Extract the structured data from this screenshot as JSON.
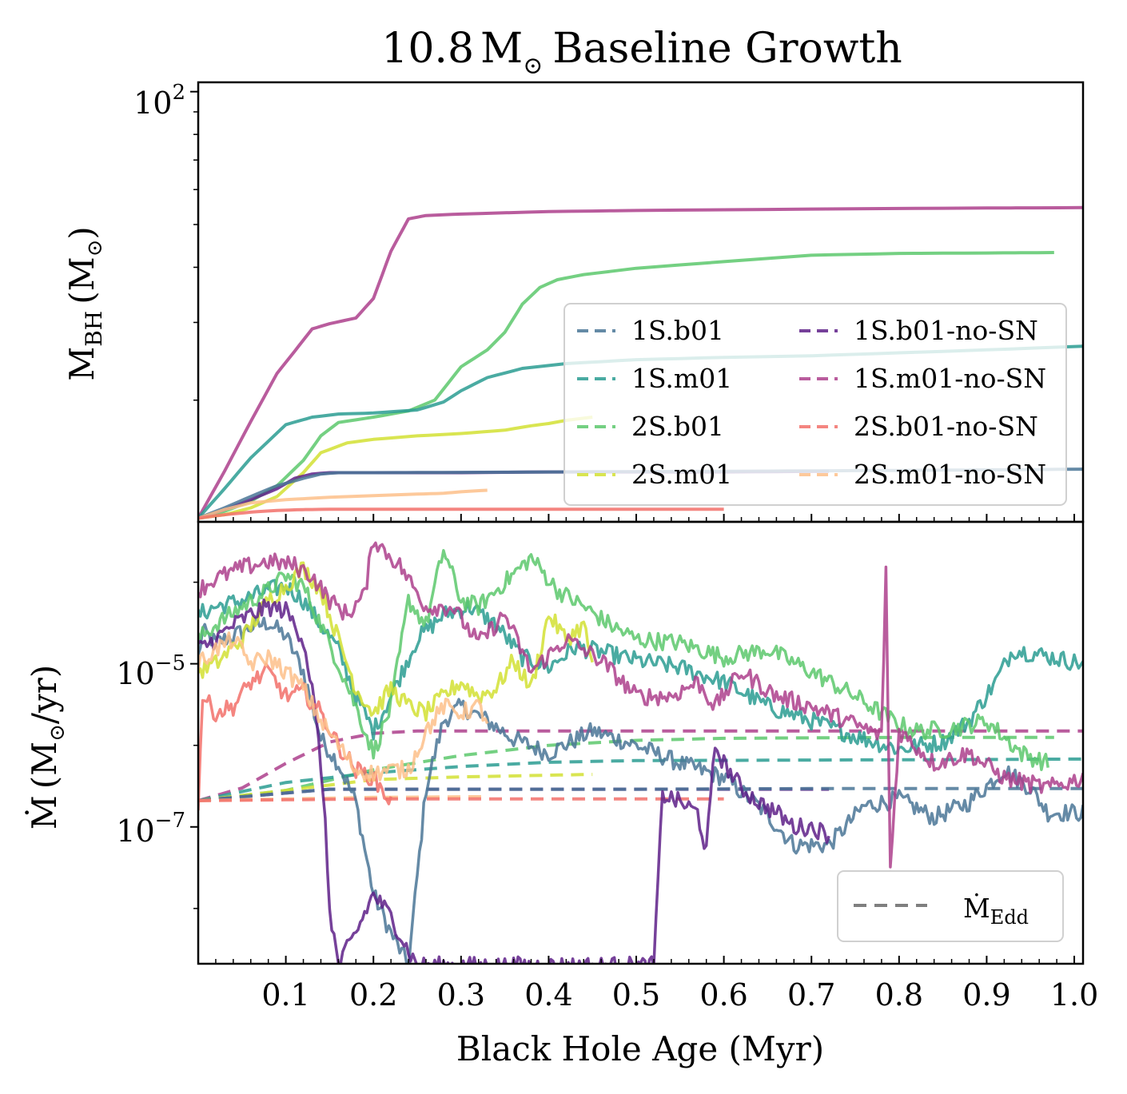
{
  "chart_data": {
    "type": "line",
    "title": "10.8 M⊙ Baseline Growth",
    "title_main": "10.8",
    "title_msun": "M",
    "title_sub": "⊙",
    "title_rest": "Baseline Growth",
    "xlabel": "Black Hole Age (Myr)",
    "xlim": [
      0.0,
      1.01
    ],
    "xticks": [
      0.1,
      0.2,
      0.3,
      0.4,
      0.5,
      0.6,
      0.7,
      0.8,
      0.9,
      1.0
    ],
    "xtick_labels": [
      "0.1",
      "0.2",
      "0.3",
      "0.4",
      "0.5",
      "0.6",
      "0.7",
      "0.8",
      "0.9",
      "1.0"
    ],
    "colors": {
      "1S.b01": "#4a7696",
      "1S.m01": "#2a9c92",
      "2S.b01": "#5cc86c",
      "2S.m01": "#d2e132",
      "1S.b01-no-SN": "#5e2088",
      "1S.m01-no-SN": "#ad3f8c",
      "2S.b01-no-SN": "#f2706a",
      "2S.m01-no-SN": "#fdbf8a",
      "edd_legend": "#7f7f7f"
    },
    "legend_top": {
      "location": "center-right",
      "entries": [
        "1S.b01",
        "1S.m01",
        "2S.b01",
        "2S.m01",
        "1S.b01-no-SN",
        "1S.m01-no-SN",
        "2S.b01-no-SN",
        "2S.m01-no-SN"
      ]
    },
    "legend_bottom": {
      "location": "lower-right",
      "label_main": "Ṁ",
      "label_sub": "Edd",
      "style": "dashed"
    },
    "top_panel": {
      "ylabel_main": "M",
      "ylabel_sub": "BH",
      "ylabel_unit": "(M",
      "ylabel_unit_sub": "⊙",
      "ylabel_close": ")",
      "yscale": "log",
      "ylim": [
        10.6,
        105
      ],
      "ytick_label_base": "10",
      "ytick_label_exp": "2",
      "ytick_value": 100,
      "series": [
        {
          "name": "1S.m01-no-SN",
          "x": [
            0.0,
            0.03,
            0.06,
            0.09,
            0.11,
            0.13,
            0.15,
            0.18,
            0.2,
            0.22,
            0.24,
            0.26,
            0.3,
            0.4,
            0.5,
            0.7,
            0.9,
            1.01
          ],
          "y": [
            10.8,
            13.8,
            17.9,
            23.0,
            25.8,
            29.0,
            29.8,
            30.7,
            34.0,
            43.5,
            51.5,
            52.4,
            52.8,
            53.5,
            53.8,
            54.2,
            54.5,
            54.6
          ]
        },
        {
          "name": "2S.b01",
          "x": [
            0.0,
            0.03,
            0.06,
            0.09,
            0.12,
            0.14,
            0.16,
            0.2,
            0.24,
            0.27,
            0.3,
            0.33,
            0.35,
            0.37,
            0.39,
            0.41,
            0.44,
            0.5,
            0.6,
            0.7,
            0.8,
            0.9,
            0.977
          ],
          "y": [
            10.8,
            11.2,
            11.8,
            12.8,
            14.6,
            16.6,
            17.8,
            18.3,
            18.9,
            20.0,
            23.8,
            26.0,
            28.5,
            33.0,
            36.0,
            37.5,
            38.5,
            39.8,
            41.2,
            42.6,
            43.0,
            43.1,
            43.2
          ]
        },
        {
          "name": "1S.m01",
          "x": [
            0.0,
            0.03,
            0.06,
            0.1,
            0.13,
            0.16,
            0.2,
            0.25,
            0.28,
            0.3,
            0.33,
            0.37,
            0.42,
            0.5,
            0.6,
            0.7,
            0.8,
            0.9,
            1.01
          ],
          "y": [
            10.8,
            12.6,
            14.8,
            17.6,
            18.3,
            18.6,
            18.7,
            19.0,
            19.8,
            21.0,
            22.5,
            23.6,
            24.2,
            24.7,
            25.0,
            25.2,
            25.6,
            26.0,
            26.5
          ]
        },
        {
          "name": "2S.m01",
          "x": [
            0.0,
            0.03,
            0.06,
            0.09,
            0.12,
            0.14,
            0.17,
            0.2,
            0.25,
            0.3,
            0.35,
            0.38,
            0.4,
            0.42,
            0.45
          ],
          "y": [
            10.8,
            11.0,
            11.4,
            12.1,
            13.7,
            15.2,
            16.0,
            16.3,
            16.6,
            16.8,
            17.1,
            17.5,
            17.7,
            18.0,
            18.3
          ]
        },
        {
          "name": "1S.b01-no-SN",
          "x": [
            0.0,
            0.03,
            0.06,
            0.09,
            0.11,
            0.13,
            0.15,
            0.2,
            0.3,
            0.4,
            0.5,
            0.6,
            0.72
          ],
          "y": [
            10.8,
            11.3,
            11.9,
            12.6,
            13.3,
            13.6,
            13.7,
            13.7,
            13.7,
            13.75,
            13.75,
            13.75,
            13.8
          ]
        },
        {
          "name": "1S.b01",
          "x": [
            0.0,
            0.03,
            0.06,
            0.09,
            0.12,
            0.14,
            0.16,
            0.2,
            0.3,
            0.4,
            0.5,
            0.6,
            0.7,
            0.8,
            0.9,
            1.01
          ],
          "y": [
            10.8,
            11.4,
            12.1,
            12.8,
            13.3,
            13.6,
            13.7,
            13.7,
            13.72,
            13.75,
            13.78,
            13.8,
            13.83,
            13.86,
            13.9,
            13.95
          ]
        },
        {
          "name": "2S.m01-no-SN",
          "x": [
            0.0,
            0.03,
            0.06,
            0.1,
            0.15,
            0.2,
            0.25,
            0.28,
            0.3,
            0.33
          ],
          "y": [
            10.8,
            11.3,
            11.7,
            11.9,
            12.05,
            12.15,
            12.25,
            12.3,
            12.4,
            12.5
          ]
        },
        {
          "name": "2S.b01-no-SN",
          "x": [
            0.0,
            0.03,
            0.06,
            0.09,
            0.12,
            0.16,
            0.2,
            0.3,
            0.4,
            0.5,
            0.6
          ],
          "y": [
            10.8,
            11.0,
            11.15,
            11.25,
            11.3,
            11.32,
            11.32,
            11.32,
            11.32,
            11.32,
            11.32
          ]
        }
      ]
    },
    "bottom_panel": {
      "ylabel_main": "Ṁ",
      "ylabel_unit": "(M",
      "ylabel_unit_sub": "⊙",
      "ylabel_close": "/yr)",
      "yscale": "log",
      "ylim": [
        2.1e-09,
        0.00055
      ],
      "yticks": [
        1e-05,
        1e-07
      ],
      "ytick_label_base": [
        "10",
        "10"
      ],
      "ytick_label_exp": [
        "−5",
        "−7"
      ],
      "series": [
        {
          "name": "1S.b01",
          "x": [
            0.0,
            0.005,
            0.02,
            0.04,
            0.06,
            0.08,
            0.1,
            0.12,
            0.14,
            0.16,
            0.18,
            0.2,
            0.22,
            0.24,
            0.26,
            0.28,
            0.3,
            0.33,
            0.36,
            0.4,
            0.45,
            0.5,
            0.55,
            0.6,
            0.64,
            0.68,
            0.72,
            0.76,
            0.8,
            0.84,
            0.88,
            0.92,
            0.95,
            0.97,
            1.01
          ],
          "y": [
            1.2e-05,
            2.5e-05,
            1.8e-05,
            2.2e-05,
            2.8e-05,
            3.2e-05,
            2.2e-05,
            8e-06,
            1.2e-06,
            6e-07,
            2e-07,
            1.5e-08,
            5e-09,
            2e-09,
            3e-07,
            2e-06,
            3e-06,
            2e-06,
            1.2e-06,
            8e-07,
            1.5e-06,
            1e-06,
            6e-07,
            4e-07,
            1.8e-07,
            6e-08,
            6e-08,
            1.8e-07,
            2.2e-07,
            1.3e-07,
            2e-07,
            5e-07,
            3e-07,
            1.5e-07,
            1.5e-07
          ]
        },
        {
          "name": "1S.m01",
          "x": [
            0.0,
            0.02,
            0.05,
            0.08,
            0.1,
            0.12,
            0.14,
            0.16,
            0.18,
            0.2,
            0.22,
            0.25,
            0.28,
            0.31,
            0.34,
            0.37,
            0.4,
            0.43,
            0.46,
            0.5,
            0.55,
            0.6,
            0.65,
            0.7,
            0.75,
            0.8,
            0.85,
            0.88,
            0.91,
            0.93,
            0.96,
            1.01
          ],
          "y": [
            4e-05,
            5e-05,
            6e-05,
            8e-05,
            9e-05,
            6e-05,
            3e-05,
            1.5e-05,
            4e-06,
            1.5e-06,
            4e-06,
            2e-05,
            4e-05,
            5e-05,
            3e-05,
            1.2e-05,
            9e-06,
            1.6e-05,
            1.4e-05,
            1.1e-05,
            9e-06,
            6e-06,
            3e-06,
            2e-06,
            1.3e-06,
            9e-07,
            1.1e-06,
            2e-06,
            6e-06,
            1.5e-05,
            1.3e-05,
            1e-05
          ]
        },
        {
          "name": "2S.b01",
          "x": [
            0.0,
            0.02,
            0.05,
            0.08,
            0.1,
            0.12,
            0.14,
            0.16,
            0.18,
            0.2,
            0.22,
            0.24,
            0.26,
            0.28,
            0.3,
            0.32,
            0.35,
            0.38,
            0.41,
            0.44,
            0.47,
            0.5,
            0.55,
            0.6,
            0.65,
            0.7,
            0.75,
            0.8,
            0.82,
            0.86,
            0.9,
            0.94,
            0.97
          ],
          "y": [
            2e-05,
            3e-05,
            5e-05,
            8e-05,
            0.00012,
            9e-05,
            3e-05,
            1e-05,
            3e-06,
            8e-07,
            3e-06,
            6e-05,
            3e-05,
            0.00025,
            6e-05,
            5e-05,
            0.0001,
            0.0002,
            8e-05,
            5e-05,
            3e-05,
            2e-05,
            1.8e-05,
            1.2e-05,
            1.5e-05,
            8e-06,
            4e-06,
            1.8e-06,
            1.5e-06,
            1.6e-06,
            2e-06,
            8e-07,
            6e-07
          ]
        },
        {
          "name": "2S.m01",
          "x": [
            0.0,
            0.02,
            0.05,
            0.08,
            0.1,
            0.12,
            0.14,
            0.16,
            0.18,
            0.2,
            0.22,
            0.24,
            0.26,
            0.28,
            0.3,
            0.32,
            0.34,
            0.36,
            0.38,
            0.4,
            0.42,
            0.44,
            0.45
          ],
          "y": [
            8e-06,
            1e-05,
            2e-05,
            6e-05,
            9e-05,
            0.00015,
            8e-05,
            2e-05,
            5e-06,
            2.5e-06,
            5e-06,
            3e-06,
            2.5e-06,
            4e-06,
            6e-06,
            4e-06,
            5e-06,
            1.1e-05,
            5e-06,
            4e-05,
            2e-05,
            3e-05,
            1e-05
          ]
        },
        {
          "name": "1S.b01-no-SN",
          "x": [
            0.0,
            0.02,
            0.04,
            0.06,
            0.08,
            0.1,
            0.12,
            0.13,
            0.14,
            0.145,
            0.15,
            0.16,
            0.18,
            0.2,
            0.22,
            0.24,
            0.25,
            0.52,
            0.53,
            0.55,
            0.57,
            0.58,
            0.59,
            0.6,
            0.62,
            0.64,
            0.66,
            0.68,
            0.7,
            0.72
          ],
          "y": [
            1.5e-05,
            2e-05,
            3e-05,
            4e-05,
            5e-05,
            4.5e-05,
            2e-05,
            5e-06,
            6e-07,
            1e-07,
            1e-08,
            2e-09,
            5e-09,
            1.5e-08,
            8e-09,
            3e-09,
            2e-09,
            2e-09,
            2.5e-07,
            2e-07,
            1.5e-07,
            5e-08,
            1e-06,
            6e-07,
            3e-07,
            2e-07,
            1.5e-07,
            1e-07,
            1e-07,
            8e-08
          ]
        },
        {
          "name": "1S.m01-no-SN",
          "x": [
            0.0,
            0.02,
            0.05,
            0.08,
            0.11,
            0.13,
            0.15,
            0.17,
            0.19,
            0.2,
            0.21,
            0.23,
            0.26,
            0.29,
            0.32,
            0.35,
            0.38,
            0.42,
            0.46,
            0.5,
            0.54,
            0.57,
            0.59,
            0.62,
            0.66,
            0.7,
            0.74,
            0.78,
            0.785,
            0.79,
            0.8,
            0.84,
            0.88,
            0.92,
            0.97,
            1.01
          ],
          "y": [
            8e-05,
            0.00011,
            0.00015,
            0.00018,
            0.00016,
            0.00012,
            6e-05,
            4e-05,
            7e-05,
            0.00035,
            0.00026,
            0.00016,
            5e-05,
            5e-05,
            1.8e-05,
            4e-05,
            8e-06,
            2e-05,
            1.1e-05,
            4e-06,
            4e-06,
            6e-06,
            3e-06,
            8e-06,
            4e-06,
            3e-06,
            2e-06,
            1.3e-06,
            0.00015,
            3e-08,
            1.5e-06,
            6e-07,
            8e-07,
            4e-07,
            3e-07,
            4e-07
          ]
        },
        {
          "name": "2S.b01-no-SN",
          "x": [
            0.0,
            0.005,
            0.02,
            0.04,
            0.06,
            0.08,
            0.1,
            0.12,
            0.14,
            0.16,
            0.18,
            0.2,
            0.22
          ],
          "y": [
            2e-07,
            4e-06,
            2.5e-06,
            3e-06,
            6e-06,
            8e-06,
            4e-06,
            4.5e-06,
            2.5e-06,
            1e-06,
            5e-07,
            4e-07,
            2e-07
          ]
        },
        {
          "name": "2S.m01-no-SN",
          "x": [
            0.0,
            0.02,
            0.04,
            0.06,
            0.08,
            0.1,
            0.12,
            0.14,
            0.16,
            0.18,
            0.2,
            0.22,
            0.24,
            0.26,
            0.28,
            0.3,
            0.32,
            0.33
          ],
          "y": [
            1e-05,
            1.5e-05,
            2e-05,
            1e-05,
            1.2e-05,
            8e-06,
            5e-06,
            2e-06,
            1e-06,
            5e-07,
            4.5e-07,
            5e-07,
            5e-07,
            1.5e-06,
            3e-06,
            2.5e-06,
            3e-06,
            2e-06
          ]
        }
      ],
      "eddington": [
        {
          "name": "1S.m01-no-SN",
          "x": [
            0.0,
            0.05,
            0.1,
            0.15,
            0.2,
            0.25,
            0.3,
            0.5,
            0.7,
            0.9,
            1.01
          ],
          "y": [
            2.1e-07,
            3e-07,
            6e-07,
            1.1e-06,
            1.4e-06,
            1.5e-06,
            1.5e-06,
            1.5e-06,
            1.5e-06,
            1.5e-06,
            1.5e-06
          ]
        },
        {
          "name": "2S.b01",
          "x": [
            0.0,
            0.1,
            0.2,
            0.3,
            0.4,
            0.5,
            0.6,
            0.8,
            0.977
          ],
          "y": [
            2.1e-07,
            2.8e-07,
            5e-07,
            7.5e-07,
            1e-06,
            1.15e-06,
            1.22e-06,
            1.25e-06,
            1.25e-06
          ]
        },
        {
          "name": "1S.m01",
          "x": [
            0.0,
            0.1,
            0.2,
            0.3,
            0.4,
            0.5,
            0.7,
            0.9,
            1.01
          ],
          "y": [
            2.1e-07,
            3.5e-07,
            4.6e-07,
            5.5e-07,
            6.2e-07,
            6.5e-07,
            6.6e-07,
            6.7e-07,
            6.8e-07
          ]
        },
        {
          "name": "2S.m01",
          "x": [
            0.0,
            0.1,
            0.2,
            0.3,
            0.4,
            0.45
          ],
          "y": [
            2.1e-07,
            2.8e-07,
            3.8e-07,
            4.1e-07,
            4.3e-07,
            4.4e-07
          ]
        },
        {
          "name": "1S.b01-no-SN",
          "x": [
            0.0,
            0.1,
            0.15,
            0.3,
            0.5,
            0.72
          ],
          "y": [
            2.1e-07,
            2.6e-07,
            2.9e-07,
            2.9e-07,
            2.9e-07,
            2.9e-07
          ]
        },
        {
          "name": "1S.b01",
          "x": [
            0.0,
            0.1,
            0.15,
            0.3,
            0.5,
            0.7,
            0.9,
            1.01
          ],
          "y": [
            2.1e-07,
            2.6e-07,
            2.9e-07,
            2.9e-07,
            2.9e-07,
            2.95e-07,
            2.95e-07,
            2.95e-07
          ]
        },
        {
          "name": "2S.m01-no-SN",
          "x": [
            0.0,
            0.1,
            0.2,
            0.33
          ],
          "y": [
            2.1e-07,
            2.2e-07,
            2.3e-07,
            2.35e-07
          ]
        },
        {
          "name": "2S.b01-no-SN",
          "x": [
            0.0,
            0.2,
            0.4,
            0.6
          ],
          "y": [
            2.1e-07,
            2.2e-07,
            2.2e-07,
            2.2e-07
          ]
        }
      ]
    }
  }
}
